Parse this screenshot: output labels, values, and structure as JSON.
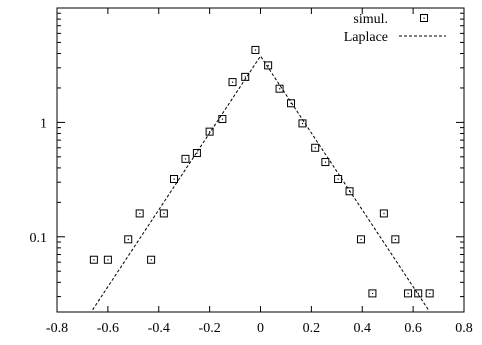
{
  "chart_data": {
    "type": "scatter",
    "title": "",
    "xlabel": "",
    "ylabel": "",
    "x_scale": "linear",
    "y_scale": "log",
    "xlim": [
      -0.8,
      0.8
    ],
    "ylim": [
      0.022,
      10
    ],
    "x_ticks": [
      -0.8,
      -0.6,
      -0.4,
      -0.2,
      0,
      0.2,
      0.4,
      0.6,
      0.8
    ],
    "x_tick_labels": [
      "-0.8",
      "-0.6",
      "-0.4",
      "-0.2",
      "0",
      "0.2",
      "0.4",
      "0.6",
      "0.8"
    ],
    "y_ticks": [
      0.1,
      1
    ],
    "y_tick_labels": [
      "0.1",
      "1"
    ],
    "grid": false,
    "legend_position": "top-right",
    "series": [
      {
        "name": "simul.",
        "kind": "points",
        "marker": "dotted-square",
        "color": "#000000",
        "points": [
          [
            -0.655,
            0.063
          ],
          [
            -0.6,
            0.063
          ],
          [
            -0.52,
            0.095
          ],
          [
            -0.475,
            0.16
          ],
          [
            -0.43,
            0.063
          ],
          [
            -0.38,
            0.16
          ],
          [
            -0.34,
            0.32
          ],
          [
            -0.295,
            0.48
          ],
          [
            -0.25,
            0.54
          ],
          [
            -0.2,
            0.83
          ],
          [
            -0.15,
            1.07
          ],
          [
            -0.11,
            2.25
          ],
          [
            -0.06,
            2.5
          ],
          [
            -0.02,
            4.3
          ],
          [
            0.03,
            3.15
          ],
          [
            0.075,
            1.97
          ],
          [
            0.12,
            1.47
          ],
          [
            0.165,
            0.98
          ],
          [
            0.215,
            0.6
          ],
          [
            0.255,
            0.45
          ],
          [
            0.305,
            0.32
          ],
          [
            0.35,
            0.25
          ],
          [
            0.395,
            0.095
          ],
          [
            0.44,
            0.032
          ],
          [
            0.485,
            0.16
          ],
          [
            0.53,
            0.095
          ],
          [
            0.58,
            0.032
          ],
          [
            0.62,
            0.032
          ],
          [
            0.665,
            0.032
          ]
        ]
      },
      {
        "name": "Laplace",
        "kind": "line",
        "dash": "dashed",
        "color": "#000000",
        "points": [
          [
            -0.66,
            0.023
          ],
          [
            0.0,
            3.8
          ],
          [
            0.66,
            0.023
          ]
        ]
      }
    ]
  }
}
